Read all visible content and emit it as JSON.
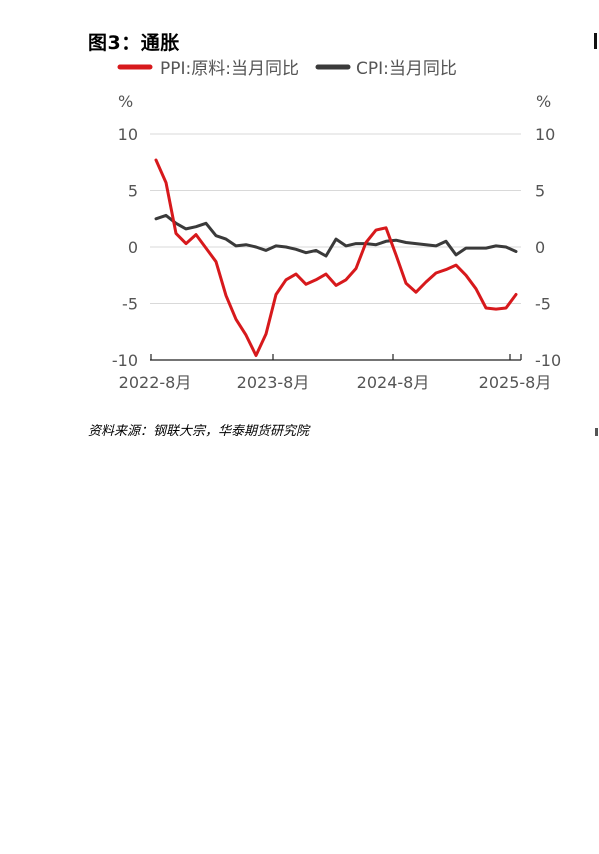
{
  "figure": {
    "title": "图3：通胀",
    "source": "资料来源：钢联大宗，华泰期货研究院"
  },
  "chart_data": {
    "type": "line",
    "title": "图3：通胀",
    "xlabel": "",
    "ylabel_left": "%",
    "ylabel_right": "%",
    "ylim": [
      -10,
      10
    ],
    "y_ticks": [
      10,
      5,
      0,
      -5,
      -10
    ],
    "x_tick_labels": [
      "2022-8月",
      "2023-8月",
      "2024-8月",
      "2025-8月"
    ],
    "x": [
      "2022-08",
      "2022-09",
      "2022-10",
      "2022-11",
      "2022-12",
      "2023-01",
      "2023-02",
      "2023-03",
      "2023-04",
      "2023-05",
      "2023-06",
      "2023-07",
      "2023-08",
      "2023-09",
      "2023-10",
      "2023-11",
      "2023-12",
      "2024-01",
      "2024-02",
      "2024-03",
      "2024-04",
      "2024-05",
      "2024-06",
      "2024-07",
      "2024-08",
      "2024-09",
      "2024-10",
      "2024-11",
      "2024-12",
      "2025-01",
      "2025-02",
      "2025-03",
      "2025-04",
      "2025-05",
      "2025-06",
      "2025-07",
      "2025-08"
    ],
    "series": [
      {
        "name": "PPI:原料:当月同比",
        "color": "#d7191c",
        "values": [
          7.7,
          5.7,
          1.2,
          0.3,
          1.1,
          -0.1,
          -1.3,
          -4.3,
          -6.4,
          -7.8,
          -9.6,
          -7.7,
          -4.2,
          -2.9,
          -2.4,
          -3.3,
          -2.9,
          -2.4,
          -3.4,
          -2.9,
          -1.9,
          0.4,
          1.5,
          1.7,
          -0.7,
          -3.2,
          -4.0,
          -3.1,
          -2.3,
          -2.0,
          -1.6,
          -2.5,
          -3.7,
          -5.4,
          -5.5,
          -5.4,
          -4.2
        ]
      },
      {
        "name": "CPI:当月同比",
        "color": "#3a3a3a",
        "values": [
          2.5,
          2.8,
          2.1,
          1.6,
          1.8,
          2.1,
          1.0,
          0.7,
          0.1,
          0.2,
          0.0,
          -0.3,
          0.1,
          0.0,
          -0.2,
          -0.5,
          -0.3,
          -0.8,
          0.7,
          0.1,
          0.3,
          0.3,
          0.2,
          0.5,
          0.6,
          0.4,
          0.3,
          0.2,
          0.1,
          0.5,
          -0.7,
          -0.1,
          -0.1,
          -0.1,
          0.1,
          0.0,
          -0.4
        ]
      }
    ],
    "legend_position": "top",
    "grid": true
  }
}
